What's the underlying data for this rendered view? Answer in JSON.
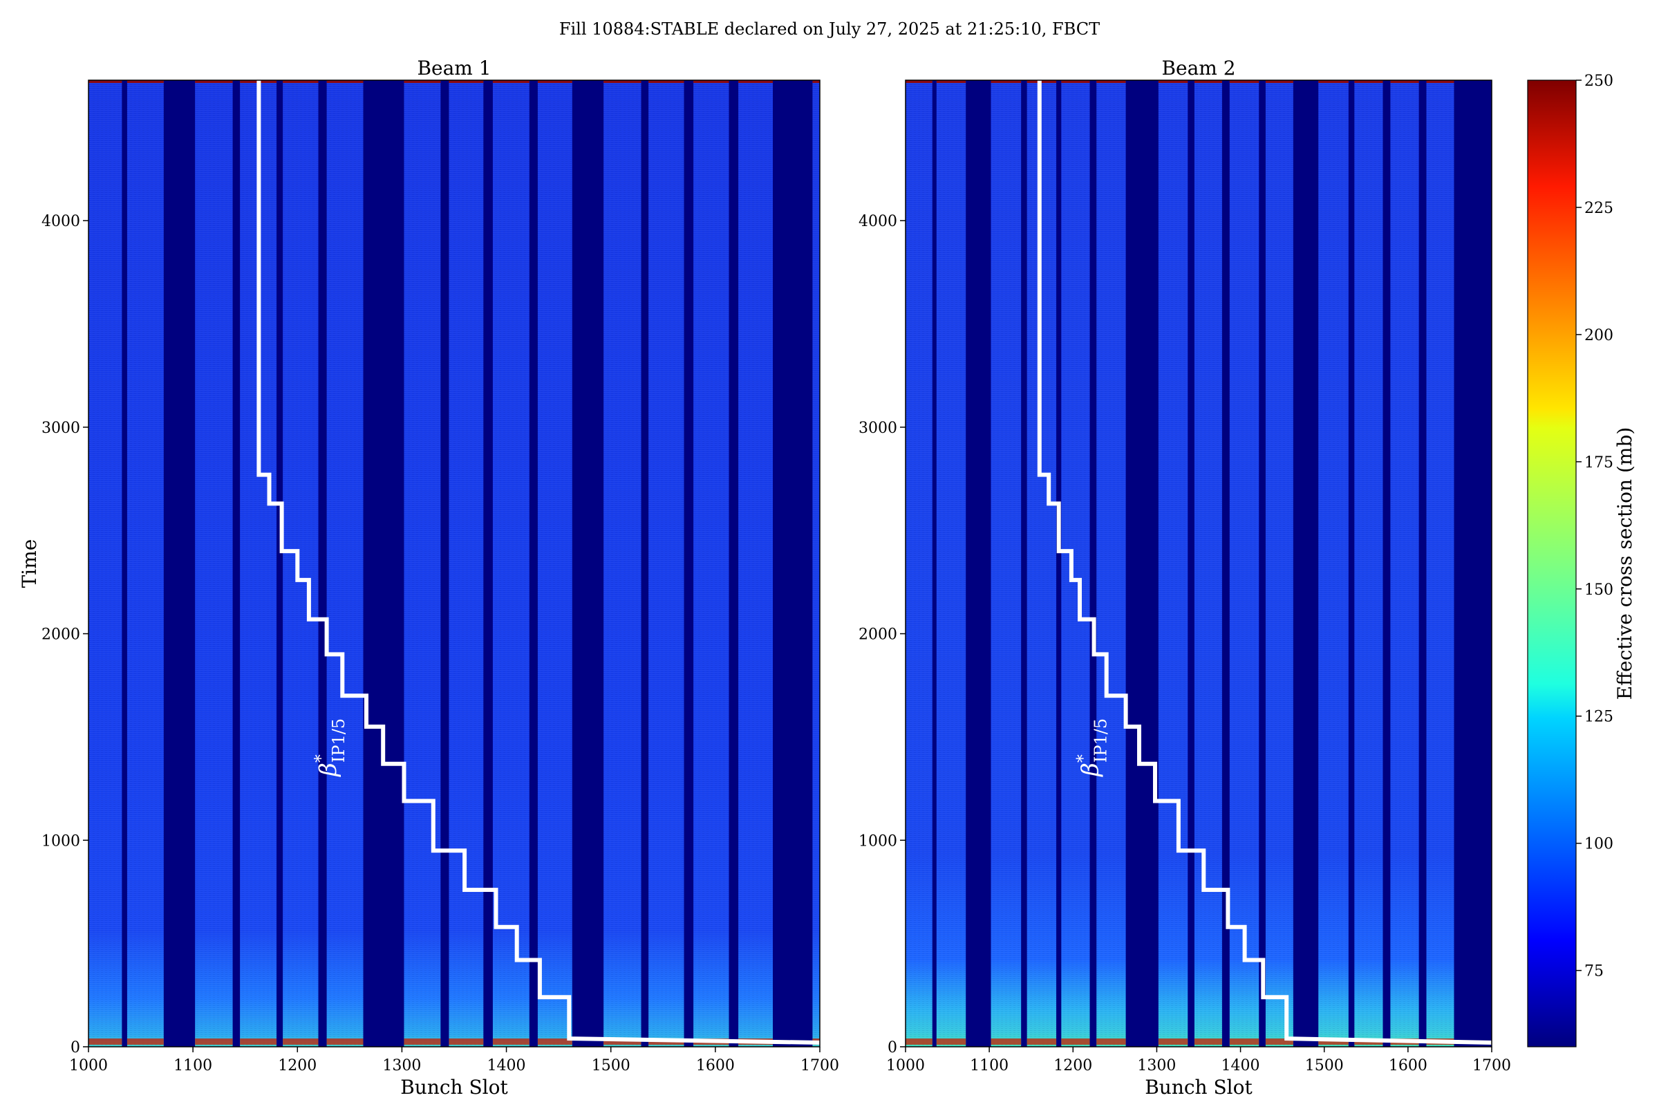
{
  "suptitle": "Fill 10884:STABLE declared on July 27, 2025 at 21:25:10, FBCT",
  "colorbar": {
    "label": "Effective cross section (mb)",
    "min": 60,
    "max": 250,
    "ticks": [
      "75",
      "100",
      "125",
      "150",
      "175",
      "200",
      "225",
      "250"
    ],
    "colormap": "jet"
  },
  "annotation": {
    "symbol": "β",
    "superscript": "*",
    "subscript": "IP1/5"
  },
  "chart_data": [
    {
      "type": "heatmap",
      "title": "Beam 1",
      "xlabel": "Bunch Slot",
      "ylabel": "Time",
      "xlim": [
        1000,
        1700
      ],
      "ylim": [
        0,
        4680
      ],
      "xticks": [
        "1000",
        "1100",
        "1200",
        "1300",
        "1400",
        "1500",
        "1600",
        "1700"
      ],
      "yticks": [
        "0",
        "1000",
        "2000",
        "3000",
        "4000"
      ],
      "filled_bands": [
        [
          1000,
          1032
        ],
        [
          1037,
          1072
        ],
        [
          1102,
          1138
        ],
        [
          1145,
          1180
        ],
        [
          1186,
          1220
        ],
        [
          1228,
          1263
        ],
        [
          1302,
          1337
        ],
        [
          1345,
          1378
        ],
        [
          1387,
          1422
        ],
        [
          1430,
          1463
        ],
        [
          1493,
          1529
        ],
        [
          1536,
          1570
        ],
        [
          1579,
          1613
        ],
        [
          1622,
          1655
        ],
        [
          1693,
          1700
        ]
      ],
      "beta_star_step_line": {
        "x": [
          1163,
          1163,
          1173,
          1173,
          1185,
          1185,
          1200,
          1200,
          1211,
          1211,
          1228,
          1228,
          1243,
          1243,
          1266,
          1266,
          1282,
          1282,
          1302,
          1302,
          1330,
          1330,
          1360,
          1360,
          1390,
          1390,
          1410,
          1410,
          1432,
          1432,
          1460,
          1460,
          1700
        ],
        "y": [
          4680,
          2770,
          2770,
          2630,
          2630,
          2400,
          2400,
          2260,
          2260,
          2070,
          2070,
          1900,
          1900,
          1700,
          1700,
          1550,
          1550,
          1370,
          1370,
          1190,
          1190,
          950,
          950,
          760,
          760,
          580,
          580,
          420,
          420,
          240,
          240,
          40,
          20
        ]
      }
    },
    {
      "type": "heatmap",
      "title": "Beam 2",
      "xlabel": "Bunch Slot",
      "ylabel": "",
      "xlim": [
        1000,
        1700
      ],
      "ylim": [
        0,
        4680
      ],
      "xticks": [
        "1000",
        "1100",
        "1200",
        "1300",
        "1400",
        "1500",
        "1600",
        "1700"
      ],
      "yticks": [
        "0",
        "1000",
        "2000",
        "3000",
        "4000"
      ],
      "filled_bands": [
        [
          1000,
          1032
        ],
        [
          1037,
          1072
        ],
        [
          1102,
          1138
        ],
        [
          1145,
          1180
        ],
        [
          1186,
          1220
        ],
        [
          1228,
          1263
        ],
        [
          1302,
          1337
        ],
        [
          1345,
          1378
        ],
        [
          1387,
          1422
        ],
        [
          1430,
          1463
        ],
        [
          1493,
          1529
        ],
        [
          1536,
          1570
        ],
        [
          1579,
          1613
        ],
        [
          1622,
          1655
        ]
      ],
      "beta_star_step_line": {
        "x": [
          1160,
          1160,
          1171,
          1171,
          1183,
          1183,
          1198,
          1198,
          1208,
          1208,
          1225,
          1225,
          1240,
          1240,
          1263,
          1263,
          1279,
          1279,
          1298,
          1298,
          1326,
          1326,
          1356,
          1356,
          1385,
          1385,
          1405,
          1405,
          1427,
          1427,
          1455,
          1455,
          1700
        ],
        "y": [
          4680,
          2770,
          2770,
          2630,
          2630,
          2400,
          2400,
          2260,
          2260,
          2070,
          2070,
          1900,
          1900,
          1700,
          1700,
          1550,
          1550,
          1370,
          1370,
          1190,
          1190,
          950,
          950,
          760,
          760,
          580,
          580,
          420,
          420,
          240,
          240,
          40,
          20
        ]
      }
    }
  ]
}
